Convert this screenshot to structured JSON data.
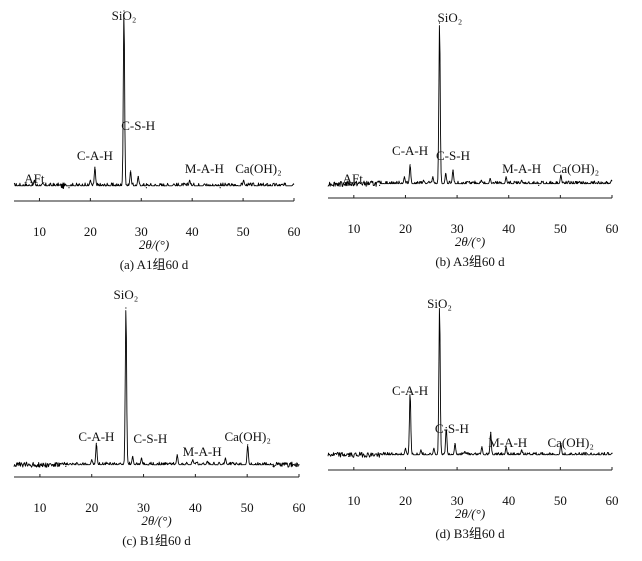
{
  "figure": {
    "chart_data": [
      {
        "type": "line",
        "caption": "(a) A1组60 d",
        "xlabel": "2θ/(°)",
        "ylabel": "",
        "xlim": [
          5,
          60
        ],
        "xticks": [
          "10",
          "20",
          "30",
          "40",
          "50",
          "60"
        ],
        "baseline": 6,
        "ymax": 100,
        "peaks": [
          {
            "x": 9.0,
            "y": 9
          },
          {
            "x": 15.8,
            "y": 5
          },
          {
            "x": 20.0,
            "y": 9
          },
          {
            "x": 20.9,
            "y": 16
          },
          {
            "x": 23.0,
            "y": 6
          },
          {
            "x": 25.0,
            "y": 6
          },
          {
            "x": 26.6,
            "y": 100
          },
          {
            "x": 27.9,
            "y": 14
          },
          {
            "x": 29.4,
            "y": 11
          },
          {
            "x": 31.0,
            "y": 5
          },
          {
            "x": 34.5,
            "y": 6
          },
          {
            "x": 36.4,
            "y": 7
          },
          {
            "x": 39.5,
            "y": 9
          },
          {
            "x": 42.4,
            "y": 7
          },
          {
            "x": 45.5,
            "y": 5
          },
          {
            "x": 50.1,
            "y": 9
          },
          {
            "x": 54.8,
            "y": 6
          },
          {
            "x": 59.9,
            "y": 7
          }
        ],
        "annotations": [
          {
            "text": "SiO₂",
            "x": 26.6
          },
          {
            "text": "AFt",
            "x": 9.0
          },
          {
            "text": "C-A-H",
            "x": 20.9
          },
          {
            "text": "C-S-H",
            "x": 29.4
          },
          {
            "text": "M-A-H",
            "x": 42.4
          },
          {
            "text": "Ca(OH)₂",
            "x": 53.0
          }
        ]
      },
      {
        "type": "line",
        "caption": "(b) A3组60 d",
        "xlabel": "2θ/(°)",
        "ylabel": "",
        "xlim": [
          5,
          60
        ],
        "xticks": [
          "10",
          "20",
          "30",
          "40",
          "50",
          "60"
        ],
        "baseline": 6,
        "ymax": 100,
        "peaks": [
          {
            "x": 9.0,
            "y": 6
          },
          {
            "x": 15.0,
            "y": 5
          },
          {
            "x": 19.8,
            "y": 10
          },
          {
            "x": 20.9,
            "y": 17
          },
          {
            "x": 23.5,
            "y": 8
          },
          {
            "x": 25.3,
            "y": 10
          },
          {
            "x": 26.6,
            "y": 100
          },
          {
            "x": 27.8,
            "y": 12
          },
          {
            "x": 29.2,
            "y": 14
          },
          {
            "x": 31.0,
            "y": 6
          },
          {
            "x": 34.7,
            "y": 8
          },
          {
            "x": 36.4,
            "y": 9
          },
          {
            "x": 39.5,
            "y": 10
          },
          {
            "x": 42.5,
            "y": 8
          },
          {
            "x": 45.8,
            "y": 5
          },
          {
            "x": 50.1,
            "y": 11
          },
          {
            "x": 54.8,
            "y": 6
          },
          {
            "x": 59.9,
            "y": 8
          }
        ],
        "annotations": [
          {
            "text": "SiO₂",
            "x": 28.6
          },
          {
            "text": "AFt",
            "x": 9.8
          },
          {
            "text": "C-A-H",
            "x": 20.9
          },
          {
            "text": "C-S-H",
            "x": 29.2
          },
          {
            "text": "M-A-H",
            "x": 42.5
          },
          {
            "text": "Ca(OH)₂",
            "x": 53.0
          }
        ]
      },
      {
        "type": "line",
        "caption": "(c) B1组60 d",
        "xlabel": "2θ/(°)",
        "ylabel": "",
        "xlim": [
          5,
          60
        ],
        "xticks": [
          "10",
          "20",
          "30",
          "40",
          "50",
          "60"
        ],
        "baseline": 5,
        "ymax": 100,
        "peaks": [
          {
            "x": 9.0,
            "y": 5
          },
          {
            "x": 15.0,
            "y": 4
          },
          {
            "x": 20.0,
            "y": 8
          },
          {
            "x": 20.9,
            "y": 18
          },
          {
            "x": 23.0,
            "y": 6
          },
          {
            "x": 25.5,
            "y": 6
          },
          {
            "x": 26.6,
            "y": 100
          },
          {
            "x": 27.9,
            "y": 10
          },
          {
            "x": 29.6,
            "y": 9
          },
          {
            "x": 31.0,
            "y": 5
          },
          {
            "x": 35.0,
            "y": 6
          },
          {
            "x": 36.5,
            "y": 11
          },
          {
            "x": 39.5,
            "y": 8
          },
          {
            "x": 42.3,
            "y": 7
          },
          {
            "x": 45.8,
            "y": 9
          },
          {
            "x": 50.1,
            "y": 17
          },
          {
            "x": 55.0,
            "y": 4
          },
          {
            "x": 60.0,
            "y": 5
          }
        ],
        "annotations": [
          {
            "text": "SiO₂",
            "x": 26.6
          },
          {
            "text": "C-A-H",
            "x": 20.9
          },
          {
            "text": "C-S-H",
            "x": 31.3
          },
          {
            "text": "M-A-H",
            "x": 41.3
          },
          {
            "text": "Ca(OH)₂",
            "x": 50.1
          }
        ]
      },
      {
        "type": "line",
        "caption": "(d) B3组60 d",
        "xlabel": "2θ/(°)",
        "ylabel": "",
        "xlim": [
          5,
          60
        ],
        "xticks": [
          "10",
          "20",
          "30",
          "40",
          "50",
          "60"
        ],
        "baseline": 7,
        "ymax": 100,
        "peaks": [
          {
            "x": 9.0,
            "y": 6
          },
          {
            "x": 17.0,
            "y": 7
          },
          {
            "x": 20.0,
            "y": 11
          },
          {
            "x": 20.9,
            "y": 46
          },
          {
            "x": 23.0,
            "y": 10
          },
          {
            "x": 25.5,
            "y": 11
          },
          {
            "x": 26.6,
            "y": 100
          },
          {
            "x": 27.9,
            "y": 24
          },
          {
            "x": 29.6,
            "y": 14
          },
          {
            "x": 31.5,
            "y": 9
          },
          {
            "x": 34.8,
            "y": 12
          },
          {
            "x": 36.5,
            "y": 21
          },
          {
            "x": 39.5,
            "y": 12
          },
          {
            "x": 42.5,
            "y": 10
          },
          {
            "x": 45.0,
            "y": 8
          },
          {
            "x": 50.1,
            "y": 14
          },
          {
            "x": 55.0,
            "y": 7
          },
          {
            "x": 60.0,
            "y": 8
          }
        ],
        "annotations": [
          {
            "text": "SiO₂",
            "x": 26.6
          },
          {
            "text": "C-A-H",
            "x": 20.9
          },
          {
            "text": "C-S-H",
            "x": 29.0
          },
          {
            "text": "M-A-H",
            "x": 39.8
          },
          {
            "text": "Ca(OH)₂",
            "x": 52.0
          }
        ]
      }
    ]
  }
}
